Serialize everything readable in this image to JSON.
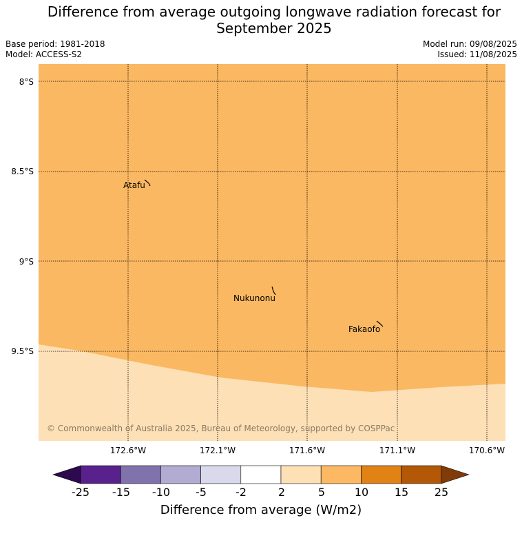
{
  "header": {
    "title_line1": "Difference from average outgoing longwave radiation forecast for",
    "title_line2": "September 2025",
    "base_period": "Base period: 1981-2018",
    "model": "Model: ACCESS-S2",
    "model_run": "Model run: 09/08/2025",
    "issued": "Issued: 11/08/2025"
  },
  "map": {
    "lat_labels": [
      "8°S",
      "8.5°S",
      "9°S",
      "9.5°S"
    ],
    "lon_labels": [
      "172.6°W",
      "172.1°W",
      "171.6°W",
      "171.1°W",
      "170.6°W"
    ],
    "places": [
      {
        "name": "Atafu"
      },
      {
        "name": "Nukunonu"
      },
      {
        "name": "Fakaofo"
      }
    ],
    "copyright": "© Commonwealth of Australia 2025, Bureau of Meteorology, supported by COSPPac",
    "fill_colors": {
      "upper_region": "#fbb862",
      "lower_region": "#fde0b6"
    }
  },
  "colorbar": {
    "title": "Difference from average (W/m2)",
    "ticks": [
      "-25",
      "-15",
      "-10",
      "-5",
      "-2",
      "2",
      "5",
      "10",
      "15",
      "25"
    ],
    "colors": [
      "#2d0a4e",
      "#58218b",
      "#8073ac",
      "#b2abd2",
      "#d8daeb",
      "#ffffff",
      "#fee0b6",
      "#fdb863",
      "#e08214",
      "#b35806",
      "#7f3b08"
    ]
  }
}
